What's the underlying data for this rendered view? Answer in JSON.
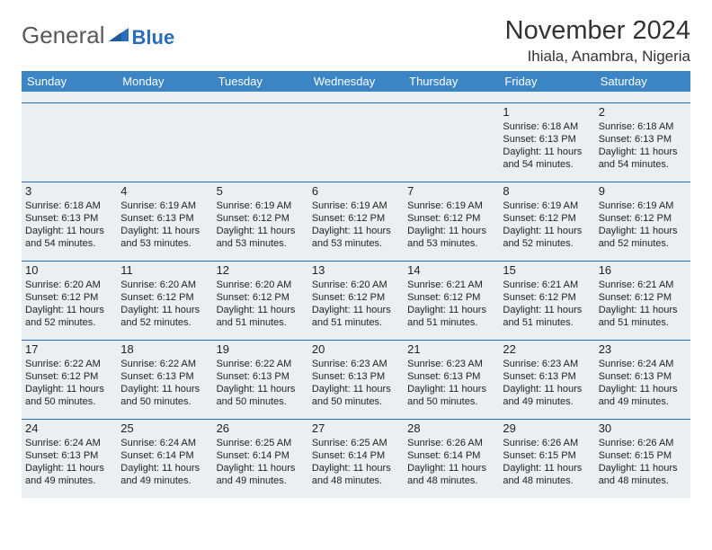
{
  "brand": {
    "part1": "General",
    "part2": "Blue"
  },
  "header": {
    "title": "November 2024",
    "location": "Ihiala, Anambra, Nigeria"
  },
  "colors": {
    "header_bg": "#3b85c5",
    "header_fg": "#ffffff",
    "row_divider": "#2b6fa8",
    "gray_bg": "#eceff1",
    "brand_gray": "#5a5a5a",
    "brand_blue": "#2a6db8"
  },
  "daysOfWeek": [
    "Sunday",
    "Monday",
    "Tuesday",
    "Wednesday",
    "Thursday",
    "Friday",
    "Saturday"
  ],
  "calendar": {
    "firstDayIndex": 5,
    "daysInMonth": 30,
    "rows": 5,
    "cols": 7
  },
  "days": {
    "1": {
      "sr": "6:18 AM",
      "ss": "6:13 PM",
      "dl": "11 hours and 54 minutes."
    },
    "2": {
      "sr": "6:18 AM",
      "ss": "6:13 PM",
      "dl": "11 hours and 54 minutes."
    },
    "3": {
      "sr": "6:18 AM",
      "ss": "6:13 PM",
      "dl": "11 hours and 54 minutes."
    },
    "4": {
      "sr": "6:19 AM",
      "ss": "6:13 PM",
      "dl": "11 hours and 53 minutes."
    },
    "5": {
      "sr": "6:19 AM",
      "ss": "6:12 PM",
      "dl": "11 hours and 53 minutes."
    },
    "6": {
      "sr": "6:19 AM",
      "ss": "6:12 PM",
      "dl": "11 hours and 53 minutes."
    },
    "7": {
      "sr": "6:19 AM",
      "ss": "6:12 PM",
      "dl": "11 hours and 53 minutes."
    },
    "8": {
      "sr": "6:19 AM",
      "ss": "6:12 PM",
      "dl": "11 hours and 52 minutes."
    },
    "9": {
      "sr": "6:19 AM",
      "ss": "6:12 PM",
      "dl": "11 hours and 52 minutes."
    },
    "10": {
      "sr": "6:20 AM",
      "ss": "6:12 PM",
      "dl": "11 hours and 52 minutes."
    },
    "11": {
      "sr": "6:20 AM",
      "ss": "6:12 PM",
      "dl": "11 hours and 52 minutes."
    },
    "12": {
      "sr": "6:20 AM",
      "ss": "6:12 PM",
      "dl": "11 hours and 51 minutes."
    },
    "13": {
      "sr": "6:20 AM",
      "ss": "6:12 PM",
      "dl": "11 hours and 51 minutes."
    },
    "14": {
      "sr": "6:21 AM",
      "ss": "6:12 PM",
      "dl": "11 hours and 51 minutes."
    },
    "15": {
      "sr": "6:21 AM",
      "ss": "6:12 PM",
      "dl": "11 hours and 51 minutes."
    },
    "16": {
      "sr": "6:21 AM",
      "ss": "6:12 PM",
      "dl": "11 hours and 51 minutes."
    },
    "17": {
      "sr": "6:22 AM",
      "ss": "6:12 PM",
      "dl": "11 hours and 50 minutes."
    },
    "18": {
      "sr": "6:22 AM",
      "ss": "6:13 PM",
      "dl": "11 hours and 50 minutes."
    },
    "19": {
      "sr": "6:22 AM",
      "ss": "6:13 PM",
      "dl": "11 hours and 50 minutes."
    },
    "20": {
      "sr": "6:23 AM",
      "ss": "6:13 PM",
      "dl": "11 hours and 50 minutes."
    },
    "21": {
      "sr": "6:23 AM",
      "ss": "6:13 PM",
      "dl": "11 hours and 50 minutes."
    },
    "22": {
      "sr": "6:23 AM",
      "ss": "6:13 PM",
      "dl": "11 hours and 49 minutes."
    },
    "23": {
      "sr": "6:24 AM",
      "ss": "6:13 PM",
      "dl": "11 hours and 49 minutes."
    },
    "24": {
      "sr": "6:24 AM",
      "ss": "6:13 PM",
      "dl": "11 hours and 49 minutes."
    },
    "25": {
      "sr": "6:24 AM",
      "ss": "6:14 PM",
      "dl": "11 hours and 49 minutes."
    },
    "26": {
      "sr": "6:25 AM",
      "ss": "6:14 PM",
      "dl": "11 hours and 49 minutes."
    },
    "27": {
      "sr": "6:25 AM",
      "ss": "6:14 PM",
      "dl": "11 hours and 48 minutes."
    },
    "28": {
      "sr": "6:26 AM",
      "ss": "6:14 PM",
      "dl": "11 hours and 48 minutes."
    },
    "29": {
      "sr": "6:26 AM",
      "ss": "6:15 PM",
      "dl": "11 hours and 48 minutes."
    },
    "30": {
      "sr": "6:26 AM",
      "ss": "6:15 PM",
      "dl": "11 hours and 48 minutes."
    }
  },
  "labels": {
    "sunrise_prefix": "Sunrise: ",
    "sunset_prefix": "Sunset: ",
    "daylight_prefix": "Daylight: "
  }
}
